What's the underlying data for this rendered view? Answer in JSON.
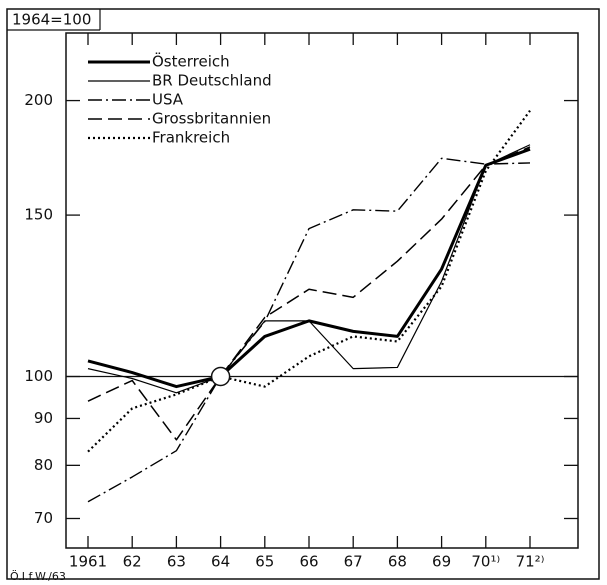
{
  "chart_data": {
    "type": "line",
    "subtitle": "1964=100",
    "source": "Ö.I.f.W./63",
    "categories": [
      "1961",
      "62",
      "63",
      "64",
      "65",
      "66",
      "67",
      "68",
      "69",
      "70¹⁾",
      "71²⁾"
    ],
    "log_scale": true,
    "ylim": [
      65,
      237
    ],
    "yticks": [
      70,
      80,
      90,
      100,
      150,
      200
    ],
    "reference_line": 100,
    "series": [
      {
        "name": "Österreich",
        "color": "#000000",
        "linestyle": "thick",
        "values": [
          104,
          101,
          97.5,
          100,
          110.6,
          115,
          112,
          110.6,
          131,
          170,
          177
        ]
      },
      {
        "name": "BR Deutschland",
        "color": "#000000",
        "linestyle": "solid",
        "values": [
          102,
          99.5,
          96,
          100,
          115,
          115,
          102,
          102.3,
          127,
          170,
          179
        ]
      },
      {
        "name": "USA",
        "color": "#000000",
        "linestyle": "dashdot",
        "values": [
          73,
          77.7,
          83,
          100,
          114.8,
          145,
          152,
          151.5,
          173,
          170.5,
          171
        ]
      },
      {
        "name": "Grossbritannien",
        "color": "#000000",
        "linestyle": "dashed",
        "values": [
          94,
          99,
          85.3,
          100,
          116,
          124.5,
          122,
          133.6,
          148.5,
          170,
          178
        ]
      },
      {
        "name": "Frankreich",
        "color": "#000000",
        "linestyle": "dotted",
        "values": [
          82.8,
          92.3,
          95.6,
          100,
          97.5,
          105.2,
          110.6,
          109.2,
          125.4,
          167.6,
          195
        ]
      }
    ]
  }
}
